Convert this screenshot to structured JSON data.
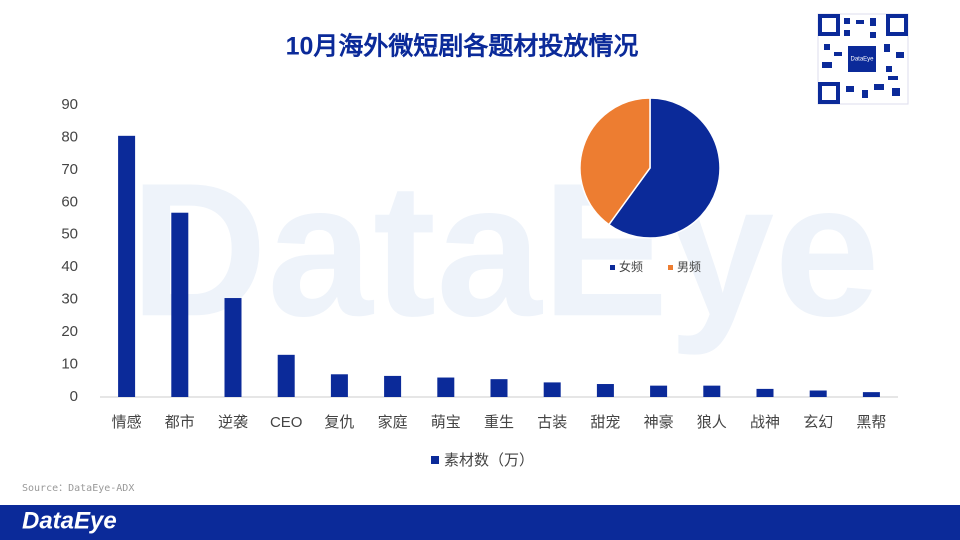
{
  "title": "10月海外微短剧各题材投放情况",
  "watermark": "DataEye",
  "qr_label": "DataEye",
  "source": "Source：DataEye-ADX",
  "footer_logo": "DataEye",
  "chart_data": [
    {
      "type": "bar",
      "categories": [
        "情感",
        "都市",
        "逆袭",
        "CEO",
        "复仇",
        "家庭",
        "萌宝",
        "重生",
        "古装",
        "甜宠",
        "神豪",
        "狼人",
        "战神",
        "玄幻",
        "黑帮"
      ],
      "series": [
        {
          "name": "素材数（万）",
          "color": "#0b2a99",
          "values": [
            80.5,
            56.8,
            30.5,
            13,
            7,
            6.5,
            6,
            5.5,
            4.5,
            4,
            3.5,
            3.5,
            2.5,
            2,
            1.5
          ]
        }
      ],
      "ylim": [
        0,
        90
      ],
      "yticks": [
        0,
        10,
        20,
        30,
        40,
        50,
        60,
        70,
        80,
        90
      ],
      "grid": false,
      "legend": "bottom"
    },
    {
      "type": "pie",
      "categories": [
        "女频",
        "男频"
      ],
      "values": [
        60,
        40
      ],
      "colors": [
        "#0b2a99",
        "#ed7d31"
      ],
      "legend": "bottom"
    }
  ]
}
